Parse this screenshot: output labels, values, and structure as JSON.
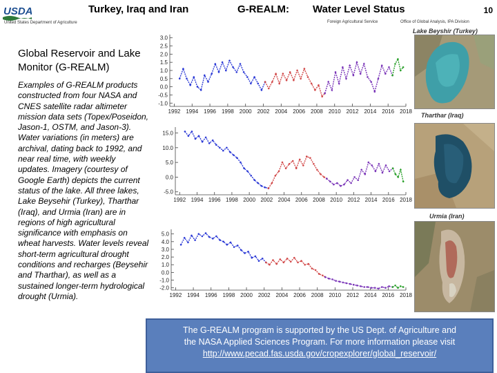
{
  "header": {
    "logo_text": "USDA",
    "logo_sub": "United States Department of Agriculture",
    "title_left": "Turkey, Iraq and Iran",
    "title_mid": "G-REALM:",
    "title_right": "Water Level Status",
    "page_number": "10",
    "sub_left": "Foreign Agricultural Service",
    "sub_right": "Office of Global Analysis, IPA Division"
  },
  "sidebar": {
    "title": "Global Reservoir and Lake Monitor (G-REALM)",
    "body": "Examples of G-REALM products constructed from four NASA and CNES satellite radar altimeter mission data sets (Topex/Poseidon, Jason-1, OSTM, and Jason-3). Water variations (in meters) are archival, dating back to 1992, and near real time, with weekly updates. Imagery (courtesy of Google Earth) depicts the current status of the lake. All three lakes, Lake Beysehir (Turkey), Tharthar (Iraq), and Urmia (Iran) are in regions of high agricultural significance with emphasis on wheat harvests. Water levels reveal short-term agricultural drought conditions and recharges (Beysehir and Tharthar), as well as a sustained longer-term hydrological drought (Urmia)."
  },
  "images": {
    "beysehir_label": "Lake Beyshir (Turkey)",
    "tharthar_label": "Tharthar (Iraq)",
    "urmia_label": "Urmia (Iran)"
  },
  "footer": {
    "line1": "The G-REALM program is supported by the US Dept. of Agriculture and",
    "line2": "the NASA Applied Sciences Program. For more information please visit",
    "link": "http://www.pecad.fas.usda.gov/cropexplorer/global_reservoir/"
  },
  "colors": {
    "topex": "#2c3ad6",
    "jason1": "#d24a4a",
    "ostm": "#7a35b8",
    "jason3": "#2aa02a",
    "footer_bg": "#5a7fbc"
  },
  "chart_data": [
    {
      "type": "line",
      "name": "Lake Beysehir (Turkey)",
      "xlim": [
        1991.5,
        2018
      ],
      "ylim": [
        -1.2,
        3.2
      ],
      "yticks": [
        3.0,
        2.5,
        2.0,
        1.5,
        1.0,
        0.5,
        0.0,
        -0.5,
        -1.0
      ],
      "xticks": [
        1992,
        1994,
        1996,
        1998,
        2000,
        2002,
        2004,
        2006,
        2008,
        2010,
        2012,
        2014,
        2016,
        2018
      ],
      "series": [
        {
          "name": "Topex/Poseidon",
          "color": "#2c3ad6",
          "x": [
            1992.6,
            1993.0,
            1993.4,
            1993.8,
            1994.2,
            1994.6,
            1995.0,
            1995.4,
            1995.8,
            1996.2,
            1996.6,
            1997.0,
            1997.4,
            1997.8,
            1998.2,
            1998.6,
            1999.0,
            1999.4,
            1999.8,
            2000.2,
            2000.6,
            2001.0,
            2001.4,
            2001.8,
            2002.2
          ],
          "y": [
            0.5,
            1.1,
            0.5,
            0.1,
            0.6,
            0.0,
            -0.2,
            0.7,
            0.3,
            0.8,
            1.4,
            0.9,
            1.5,
            1.0,
            1.6,
            1.2,
            0.9,
            1.4,
            0.9,
            0.6,
            0.2,
            0.6,
            0.2,
            -0.2,
            0.3
          ]
        },
        {
          "name": "Jason-1",
          "color": "#d24a4a",
          "x": [
            2002.2,
            2002.6,
            2003.0,
            2003.4,
            2003.8,
            2004.2,
            2004.6,
            2005.0,
            2005.4,
            2005.8,
            2006.2,
            2006.6,
            2007.0,
            2007.4,
            2007.8,
            2008.2,
            2008.6,
            2008.9
          ],
          "y": [
            0.3,
            -0.1,
            0.3,
            0.8,
            0.2,
            0.8,
            0.4,
            0.9,
            0.4,
            1.0,
            0.5,
            1.1,
            0.6,
            0.2,
            -0.2,
            0.1,
            -0.6,
            -0.4
          ]
        },
        {
          "name": "OSTM",
          "color": "#7a35b8",
          "x": [
            2008.9,
            2009.3,
            2009.7,
            2010.1,
            2010.5,
            2010.9,
            2011.3,
            2011.7,
            2012.1,
            2012.5,
            2012.9,
            2013.3,
            2013.7,
            2014.1,
            2014.5,
            2014.9,
            2015.3,
            2015.7,
            2016.1,
            2016.5
          ],
          "y": [
            -0.4,
            0.3,
            -0.2,
            0.9,
            0.2,
            1.2,
            0.5,
            1.3,
            0.7,
            1.5,
            0.8,
            1.4,
            0.6,
            0.3,
            -0.3,
            0.5,
            1.3,
            0.8,
            1.2,
            0.7
          ]
        },
        {
          "name": "Jason-3",
          "color": "#2aa02a",
          "x": [
            2016.5,
            2016.8,
            2017.1,
            2017.4,
            2017.7
          ],
          "y": [
            0.7,
            1.4,
            1.7,
            1.0,
            1.2
          ]
        }
      ]
    },
    {
      "type": "line",
      "name": "Tharthar (Iraq)",
      "xlim": [
        1991.5,
        2018
      ],
      "ylim": [
        -6,
        17
      ],
      "yticks": [
        15.0,
        10.0,
        5.0,
        0.0,
        -5.0
      ],
      "xticks": [
        1992,
        1994,
        1996,
        1998,
        2000,
        2002,
        2004,
        2006,
        2008,
        2010,
        2012,
        2014,
        2016,
        2018
      ],
      "series": [
        {
          "name": "Topex/Poseidon",
          "color": "#2c3ad6",
          "x": [
            1992.6,
            1993.0,
            1993.4,
            1993.8,
            1994.2,
            1994.6,
            1995.0,
            1995.4,
            1995.8,
            1996.2,
            1996.6,
            1997.0,
            1997.4,
            1997.8,
            1998.2,
            1998.6,
            1999.0,
            1999.4,
            1999.8,
            2000.2,
            2000.6,
            2001.0,
            2001.4,
            2001.8,
            2002.2
          ],
          "y": [
            15.5,
            14.0,
            15.5,
            13.0,
            14.0,
            12.0,
            13.5,
            11.5,
            12.5,
            11.0,
            10.0,
            9.0,
            10.0,
            8.5,
            7.5,
            6.5,
            5.0,
            3.0,
            2.0,
            0.5,
            -1.0,
            -2.0,
            -3.0,
            -3.5,
            -3.8
          ]
        },
        {
          "name": "Jason-1",
          "color": "#d24a4a",
          "x": [
            2002.2,
            2002.6,
            2003.0,
            2003.4,
            2003.8,
            2004.2,
            2004.6,
            2005.0,
            2005.4,
            2005.8,
            2006.2,
            2006.6,
            2007.0,
            2007.4,
            2007.8,
            2008.2,
            2008.6,
            2008.9
          ],
          "y": [
            -3.8,
            -2.0,
            0.5,
            2.0,
            5.0,
            3.0,
            4.5,
            5.5,
            3.0,
            6.0,
            4.0,
            7.0,
            6.5,
            4.5,
            2.5,
            1.0,
            0.0,
            -0.5
          ]
        },
        {
          "name": "OSTM",
          "color": "#7a35b8",
          "x": [
            2008.9,
            2009.3,
            2009.7,
            2010.1,
            2010.5,
            2010.9,
            2011.3,
            2011.7,
            2012.1,
            2012.5,
            2012.9,
            2013.3,
            2013.7,
            2014.1,
            2014.5,
            2014.9,
            2015.3,
            2015.7,
            2016.1,
            2016.5
          ],
          "y": [
            -0.5,
            -1.5,
            -2.5,
            -2.0,
            -3.0,
            -2.5,
            -1.0,
            -2.0,
            0.0,
            -1.0,
            2.5,
            1.0,
            5.0,
            4.0,
            2.0,
            4.5,
            1.5,
            4.0,
            2.0,
            3.0
          ]
        },
        {
          "name": "Jason-3",
          "color": "#2aa02a",
          "x": [
            2016.5,
            2016.8,
            2017.1,
            2017.4,
            2017.7
          ],
          "y": [
            3.0,
            1.0,
            0.0,
            2.5,
            -1.5
          ]
        }
      ]
    },
    {
      "type": "line",
      "name": "Urmia (Iran)",
      "xlim": [
        1991.5,
        2018
      ],
      "ylim": [
        -2.3,
        5.6
      ],
      "yticks": [
        5.0,
        4.0,
        3.0,
        2.0,
        1.0,
        0.0,
        -1.0,
        -2.0
      ],
      "xticks": [
        1992,
        1994,
        1996,
        1998,
        2000,
        2002,
        2004,
        2006,
        2008,
        2010,
        2012,
        2014,
        2016,
        2018
      ],
      "series": [
        {
          "name": "Topex/Poseidon",
          "color": "#2c3ad6",
          "x": [
            1992.6,
            1993.0,
            1993.4,
            1993.8,
            1994.2,
            1994.6,
            1995.0,
            1995.4,
            1995.8,
            1996.2,
            1996.6,
            1997.0,
            1997.4,
            1997.8,
            1998.2,
            1998.6,
            1999.0,
            1999.4,
            1999.8,
            2000.2,
            2000.6,
            2001.0,
            2001.4,
            2001.8,
            2002.2
          ],
          "y": [
            3.6,
            4.5,
            3.9,
            4.8,
            4.2,
            5.0,
            4.7,
            5.1,
            4.6,
            4.4,
            4.7,
            4.2,
            4.0,
            3.6,
            3.9,
            3.3,
            3.5,
            2.9,
            2.5,
            2.7,
            1.9,
            2.1,
            1.5,
            1.8,
            1.3
          ]
        },
        {
          "name": "Jason-1",
          "color": "#d24a4a",
          "x": [
            2002.2,
            2002.6,
            2003.0,
            2003.4,
            2003.8,
            2004.2,
            2004.6,
            2005.0,
            2005.4,
            2005.8,
            2006.2,
            2006.6,
            2007.0,
            2007.4,
            2007.8,
            2008.2,
            2008.6,
            2008.9
          ],
          "y": [
            1.3,
            1.0,
            1.6,
            1.1,
            1.7,
            1.3,
            1.8,
            1.4,
            1.9,
            1.3,
            1.5,
            1.0,
            1.1,
            0.5,
            0.3,
            -0.2,
            -0.4,
            -0.6
          ]
        },
        {
          "name": "OSTM",
          "color": "#7a35b8",
          "x": [
            2008.9,
            2009.3,
            2009.7,
            2010.1,
            2010.5,
            2010.9,
            2011.3,
            2011.7,
            2012.1,
            2012.5,
            2012.9,
            2013.3,
            2013.7,
            2014.1,
            2014.5,
            2014.9,
            2015.3,
            2015.7,
            2016.1,
            2016.5
          ],
          "y": [
            -0.6,
            -0.8,
            -0.9,
            -1.1,
            -1.2,
            -1.3,
            -1.4,
            -1.5,
            -1.6,
            -1.7,
            -1.8,
            -1.9,
            -1.9,
            -2.0,
            -2.0,
            -2.1,
            -1.9,
            -2.0,
            -1.8,
            -1.9
          ]
        },
        {
          "name": "Jason-3",
          "color": "#2aa02a",
          "x": [
            2016.5,
            2016.8,
            2017.1,
            2017.4,
            2017.7
          ],
          "y": [
            -1.9,
            -1.7,
            -2.0,
            -1.8,
            -1.9
          ]
        }
      ]
    }
  ]
}
